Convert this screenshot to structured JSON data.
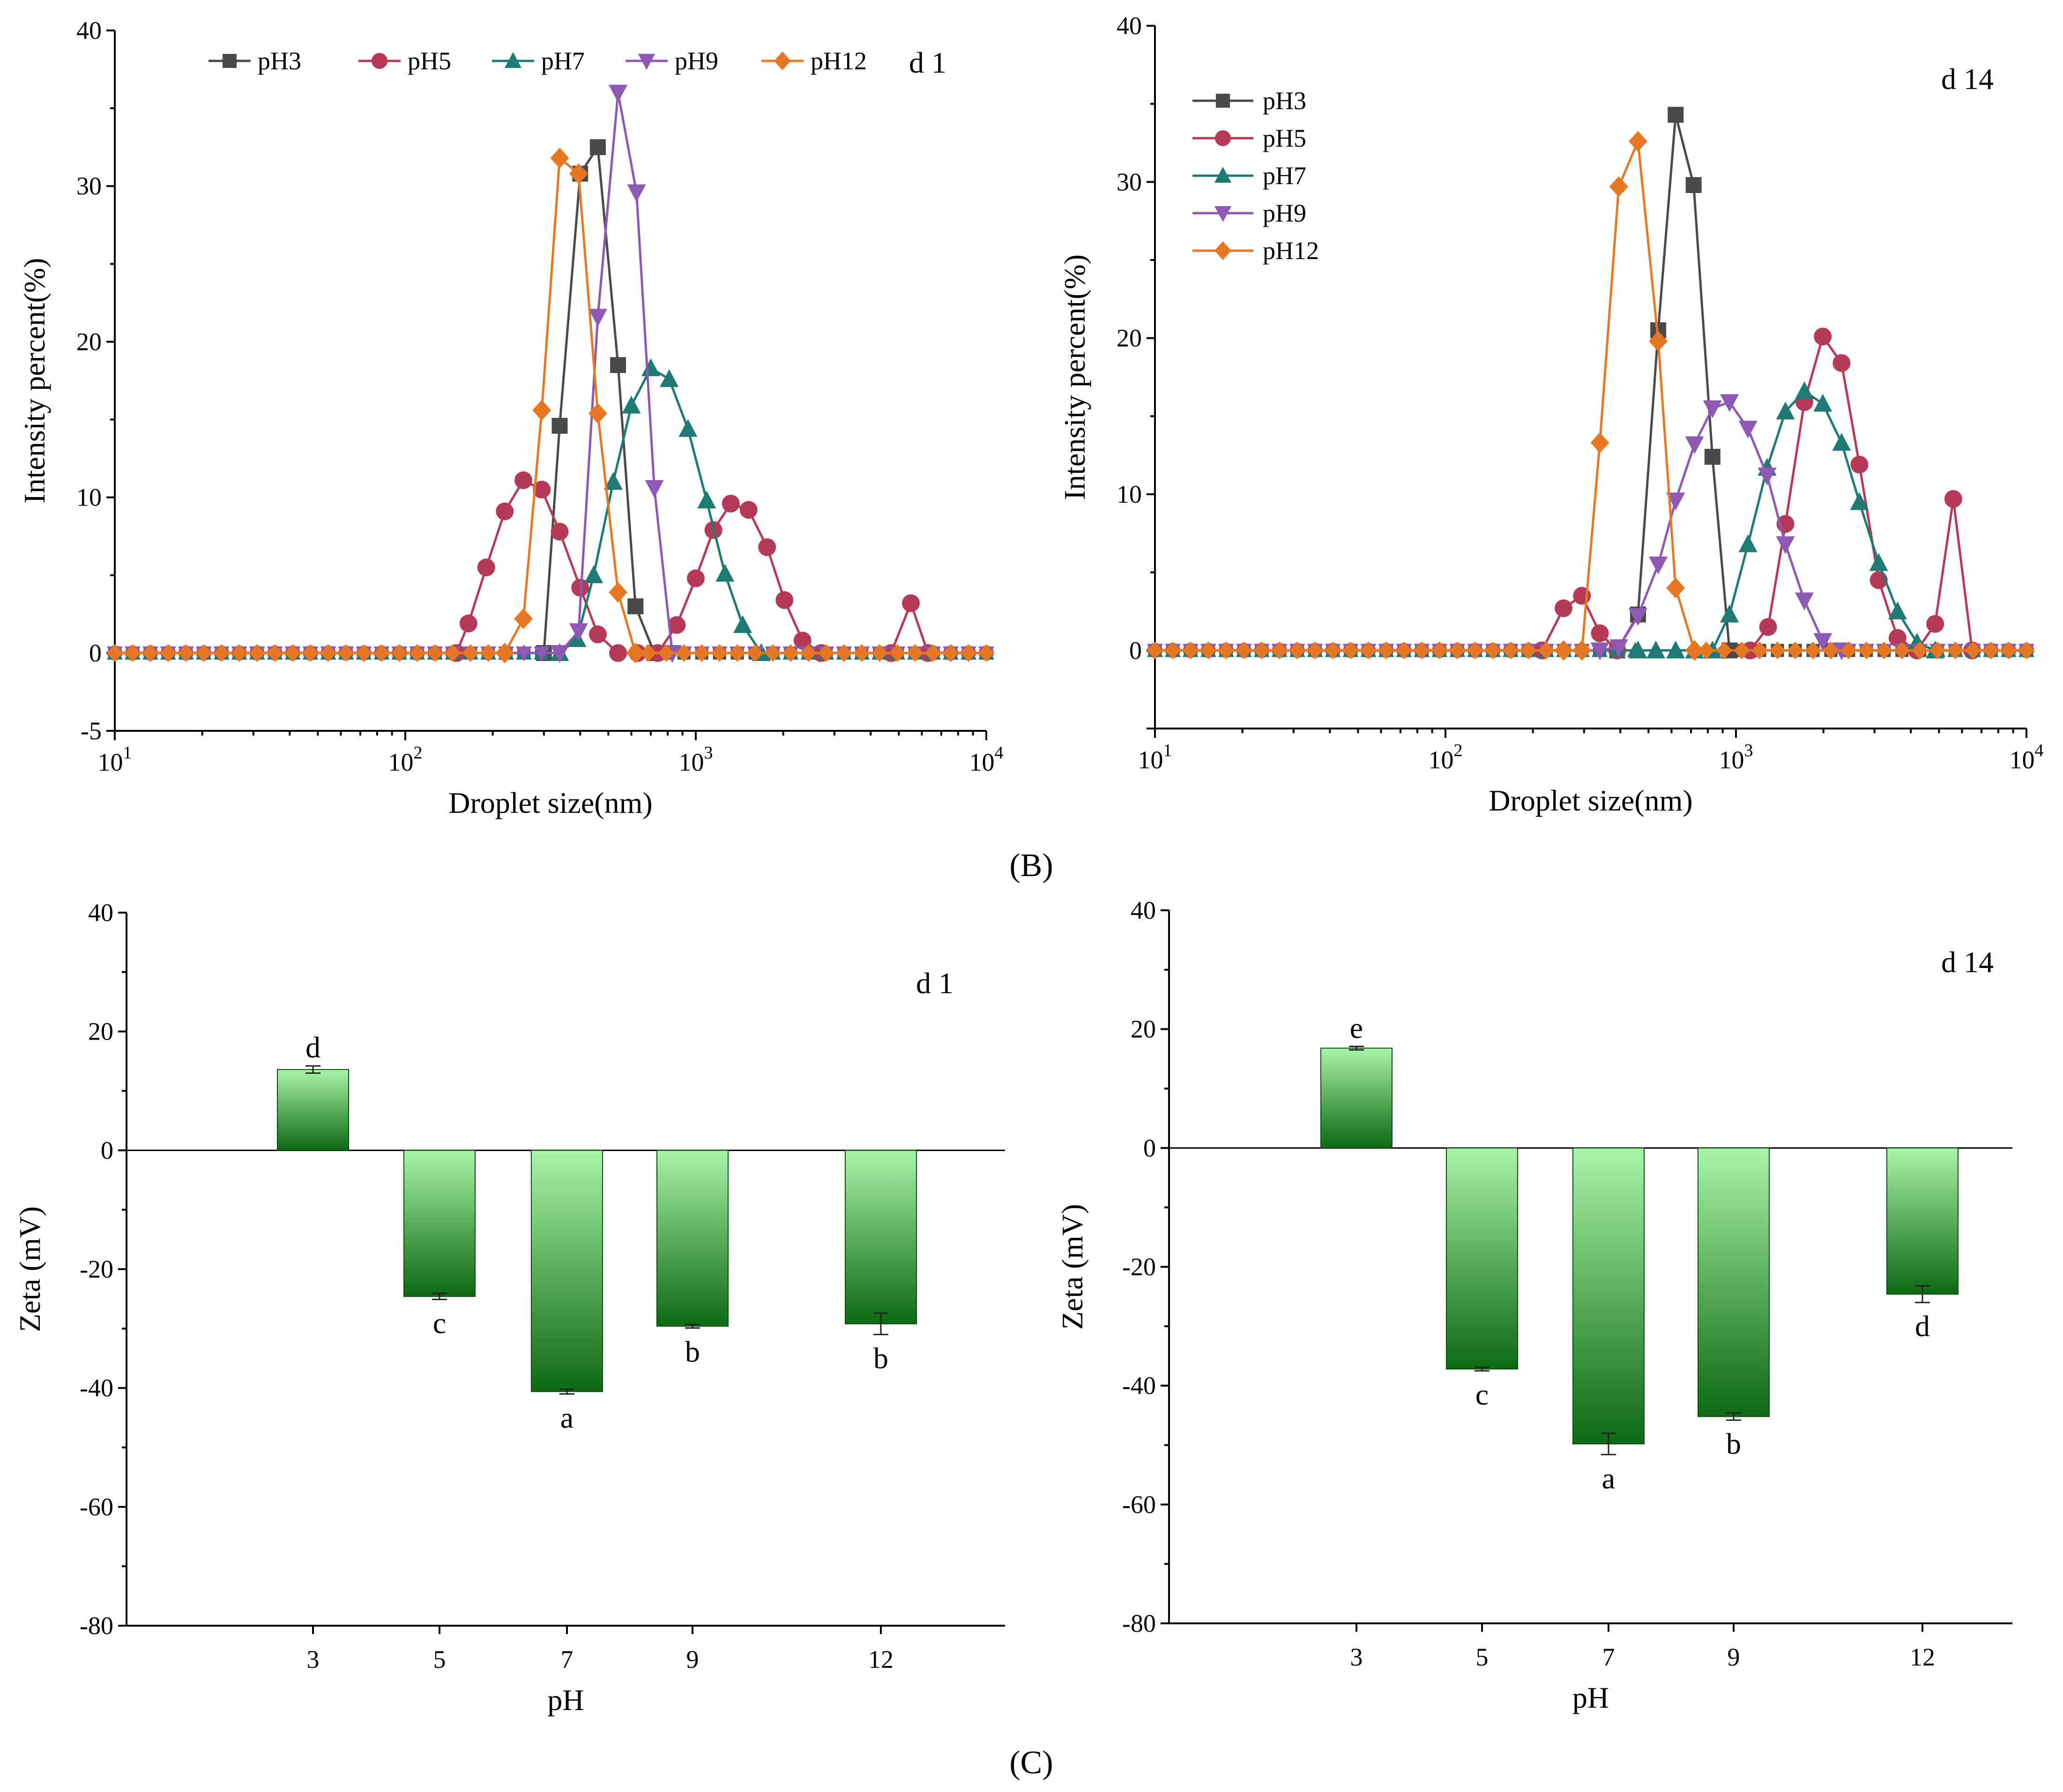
{
  "panel_labels": {
    "top": "(B)",
    "bottom": "(C)"
  },
  "chart_data": [
    {
      "type": "line",
      "tag": "d 1",
      "xlabel": "Droplet size(nm)",
      "ylabel": "Intensity percent(%)",
      "xscale": "log",
      "xlim": [
        10,
        10000
      ],
      "ylim": [
        -5,
        40
      ],
      "yticks": [
        "-5",
        "0",
        "10",
        "20",
        "30",
        "40"
      ],
      "legend": "top-horizontal",
      "series": [
        {
          "name": "pH3",
          "color": "#4a4a4a",
          "marker": "square",
          "x": [
            300,
            340,
            400,
            460,
            540,
            620,
            720
          ],
          "y": [
            0,
            14.6,
            30.8,
            32.5,
            18.5,
            3,
            0
          ]
        },
        {
          "name": "pH5",
          "color": "#b53a57",
          "marker": "circle",
          "x": [
            150,
            165,
            190,
            220,
            255,
            295,
            340,
            400,
            460,
            540,
            630,
            740,
            860,
            1000,
            1150,
            1320,
            1520,
            1760,
            2020,
            2330,
            2700,
            4700,
            5500,
            6300
          ],
          "y": [
            0,
            1.9,
            5.5,
            9.1,
            11.1,
            10.5,
            7.8,
            4.2,
            1.2,
            0,
            0,
            0,
            1.8,
            4.8,
            7.9,
            9.6,
            9.2,
            6.8,
            3.4,
            0.8,
            0,
            0,
            3.2,
            0
          ]
        },
        {
          "name": "pH7",
          "color": "#1f7a73",
          "marker": "triangle-up",
          "x": [
            340,
            390,
            445,
            520,
            600,
            700,
            810,
            940,
            1090,
            1260,
            1450,
            1680
          ],
          "y": [
            0,
            0.9,
            5,
            11,
            15.9,
            18.3,
            17.6,
            14.4,
            9.8,
            5.1,
            1.8,
            0
          ]
        },
        {
          "name": "pH9",
          "color": "#8e58b5",
          "marker": "triangle-down",
          "x": [
            340,
            395,
            460,
            540,
            625,
            720,
            830
          ],
          "y": [
            0,
            1.4,
            21.6,
            36,
            29.6,
            10.6,
            0
          ]
        },
        {
          "name": "pH12",
          "color": "#e67824",
          "marker": "diamond",
          "x": [
            220,
            255,
            295,
            340,
            395,
            460,
            540,
            620
          ],
          "y": [
            0,
            2.2,
            15.6,
            31.8,
            30.8,
            15.4,
            3.9,
            0
          ]
        }
      ]
    },
    {
      "type": "line",
      "tag": "d 14",
      "xlabel": "Droplet size(nm)",
      "ylabel": "Intensity percent(%)",
      "xscale": "log",
      "xlim": [
        10,
        10000
      ],
      "ylim": [
        -5,
        40
      ],
      "yticks": [
        "0",
        "10",
        "20",
        "30",
        "40"
      ],
      "legend": "top-left-vertical",
      "series": [
        {
          "name": "pH3",
          "color": "#4a4a4a",
          "marker": "square",
          "x": [
            390,
            460,
            540,
            620,
            715,
            830,
            950
          ],
          "y": [
            0,
            2.3,
            20.5,
            34.3,
            29.8,
            12.4,
            0
          ]
        },
        {
          "name": "pH5",
          "color": "#b53a57",
          "marker": "circle",
          "x": [
            215,
            255,
            295,
            340,
            390,
            1120,
            1290,
            1480,
            1720,
            1990,
            2310,
            2660,
            3100,
            3600,
            4200,
            4850,
            5600,
            6500
          ],
          "y": [
            0,
            2.7,
            3.5,
            1.1,
            0,
            0,
            1.5,
            8.1,
            15.9,
            20.1,
            18.4,
            11.9,
            4.5,
            0.8,
            0,
            1.7,
            9.7,
            0
          ]
        },
        {
          "name": "pH7",
          "color": "#1f7a73",
          "marker": "triangle-up",
          "x": [
            460,
            530,
            620,
            720,
            830,
            950,
            1100,
            1280,
            1480,
            1720,
            1990,
            2310,
            2660,
            3100,
            3600,
            4200,
            4850
          ],
          "y": [
            0,
            0,
            0,
            0,
            0,
            2.3,
            6.8,
            11.7,
            15.3,
            16.6,
            15.8,
            13.3,
            9.5,
            5.6,
            2.5,
            0.5,
            0
          ]
        },
        {
          "name": "pH9",
          "color": "#8e58b5",
          "marker": "triangle-down",
          "x": [
            340,
            395,
            460,
            540,
            620,
            720,
            830,
            950,
            1100,
            1280,
            1480,
            1720,
            1990,
            2310
          ],
          "y": [
            0,
            0.2,
            2.2,
            5.5,
            9.6,
            13.2,
            15.5,
            15.9,
            14.2,
            11.2,
            6.8,
            3.2,
            0.6,
            0
          ]
        },
        {
          "name": "pH12",
          "color": "#e67824",
          "marker": "diamond",
          "x": [
            255,
            295,
            340,
            395,
            460,
            540,
            620,
            720
          ],
          "y": [
            0,
            0,
            13.3,
            29.7,
            32.6,
            19.8,
            4,
            0
          ]
        }
      ]
    },
    {
      "type": "bar",
      "tag": "d 1",
      "xlabel": "pH",
      "ylabel": "Zeta (mV)",
      "ylim": [
        -80,
        40
      ],
      "yticks": [
        "-80",
        "-60",
        "-40",
        "-20",
        "0",
        "20",
        "40"
      ],
      "categories": [
        "3",
        "5",
        "7",
        "9",
        "12"
      ],
      "values": [
        13.6,
        -24.6,
        -40.6,
        -29.6,
        -29.2
      ],
      "errors": [
        0.6,
        0.5,
        0.4,
        0.3,
        1.8
      ],
      "letters": [
        "d",
        "c",
        "a",
        "b",
        "b"
      ]
    },
    {
      "type": "bar",
      "tag": "d 14",
      "xlabel": "pH",
      "ylabel": "Zeta (mV)",
      "ylim": [
        -80,
        40
      ],
      "yticks": [
        "-80",
        "-60",
        "-40",
        "-20",
        "0",
        "20",
        "40"
      ],
      "categories": [
        "3",
        "5",
        "7",
        "9",
        "12"
      ],
      "values": [
        16.8,
        -37.2,
        -49.8,
        -45.2,
        -24.6
      ],
      "errors": [
        0.3,
        0.3,
        1.8,
        0.6,
        1.4
      ],
      "letters": [
        "e",
        "c",
        "a",
        "b",
        "d"
      ]
    }
  ]
}
